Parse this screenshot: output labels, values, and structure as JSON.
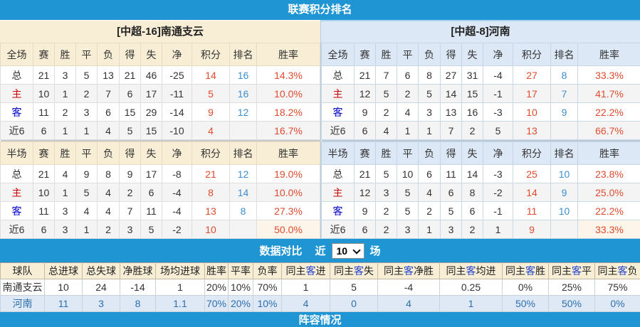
{
  "top_bar": {
    "title": "联赛积分排名"
  },
  "home_table": {
    "title": "[中超-16]南通支云",
    "sections": [
      {
        "label": "全场",
        "columns": [
          "赛",
          "胜",
          "平",
          "负",
          "得",
          "失",
          "净",
          "积分",
          "排名",
          "胜率"
        ],
        "rows": [
          {
            "label": "总",
            "values": [
              "21",
              "3",
              "5",
              "13",
              "21",
              "46",
              "-25",
              "14",
              "16",
              "14.3%"
            ]
          },
          {
            "label": "主",
            "values": [
              "10",
              "1",
              "2",
              "7",
              "6",
              "17",
              "-11",
              "5",
              "16",
              "10.0%"
            ]
          },
          {
            "label": "客",
            "values": [
              "11",
              "2",
              "3",
              "6",
              "15",
              "29",
              "-14",
              "9",
              "12",
              "18.2%"
            ]
          },
          {
            "label": "近6",
            "values": [
              "6",
              "1",
              "1",
              "4",
              "5",
              "15",
              "-10",
              "4",
              "",
              "16.7%"
            ]
          }
        ]
      },
      {
        "label": "半场",
        "columns": [
          "赛",
          "胜",
          "平",
          "负",
          "得",
          "失",
          "净",
          "积分",
          "排名",
          "胜率"
        ],
        "rows": [
          {
            "label": "总",
            "values": [
              "21",
              "4",
              "9",
              "8",
              "9",
              "17",
              "-8",
              "21",
              "12",
              "19.0%"
            ]
          },
          {
            "label": "主",
            "values": [
              "10",
              "1",
              "5",
              "4",
              "2",
              "6",
              "-4",
              "8",
              "14",
              "10.0%"
            ]
          },
          {
            "label": "客",
            "values": [
              "11",
              "3",
              "4",
              "4",
              "7",
              "11",
              "-4",
              "13",
              "8",
              "27.3%"
            ]
          },
          {
            "label": "近6",
            "values": [
              "6",
              "3",
              "1",
              "2",
              "3",
              "5",
              "-2",
              "10",
              "",
              "50.0%"
            ],
            "highlight_rate": true
          }
        ]
      }
    ]
  },
  "away_table": {
    "title": "[中超-8]河南",
    "sections": [
      {
        "label": "全场",
        "columns": [
          "赛",
          "胜",
          "平",
          "负",
          "得",
          "失",
          "净",
          "积分",
          "排名",
          "胜率"
        ],
        "rows": [
          {
            "label": "总",
            "values": [
              "21",
              "7",
              "6",
              "8",
              "27",
              "31",
              "-4",
              "27",
              "8",
              "33.3%"
            ]
          },
          {
            "label": "主",
            "values": [
              "12",
              "5",
              "2",
              "5",
              "14",
              "15",
              "-1",
              "17",
              "7",
              "41.7%"
            ]
          },
          {
            "label": "客",
            "values": [
              "9",
              "2",
              "4",
              "3",
              "13",
              "16",
              "-3",
              "10",
              "9",
              "22.2%"
            ]
          },
          {
            "label": "近6",
            "values": [
              "6",
              "4",
              "1",
              "1",
              "7",
              "2",
              "5",
              "13",
              "",
              "66.7%"
            ]
          }
        ]
      },
      {
        "label": "半场",
        "columns": [
          "赛",
          "胜",
          "平",
          "负",
          "得",
          "失",
          "净",
          "积分",
          "排名",
          "胜率"
        ],
        "rows": [
          {
            "label": "总",
            "values": [
              "21",
              "5",
              "10",
              "6",
              "11",
              "14",
              "-3",
              "25",
              "10",
              "23.8%"
            ]
          },
          {
            "label": "主",
            "values": [
              "12",
              "3",
              "5",
              "4",
              "6",
              "8",
              "-2",
              "14",
              "9",
              "25.0%"
            ]
          },
          {
            "label": "客",
            "values": [
              "9",
              "2",
              "5",
              "2",
              "5",
              "6",
              "-1",
              "11",
              "10",
              "22.2%"
            ]
          },
          {
            "label": "近6",
            "values": [
              "6",
              "2",
              "3",
              "1",
              "3",
              "2",
              "1",
              "9",
              "",
              "33.3%"
            ],
            "highlight_rate": true
          }
        ]
      }
    ]
  },
  "compare_bar": {
    "title": "数据对比",
    "near_label": "近",
    "select_value": "10",
    "matches_label": "场"
  },
  "compare_table": {
    "headers": [
      {
        "parts": [
          {
            "text": "球队"
          }
        ]
      },
      {
        "parts": [
          {
            "text": "总进球"
          }
        ]
      },
      {
        "parts": [
          {
            "text": "总失球"
          }
        ]
      },
      {
        "parts": [
          {
            "text": "净胜球"
          }
        ]
      },
      {
        "parts": [
          {
            "text": "场均进球"
          }
        ]
      },
      {
        "parts": [
          {
            "text": "胜率"
          }
        ]
      },
      {
        "parts": [
          {
            "text": "平率"
          }
        ]
      },
      {
        "parts": [
          {
            "text": "负率"
          }
        ]
      },
      {
        "parts": [
          {
            "text": "同主"
          },
          {
            "text": "客",
            "blue": true
          },
          {
            "text": "进"
          }
        ]
      },
      {
        "parts": [
          {
            "text": "同主"
          },
          {
            "text": "客",
            "blue": true
          },
          {
            "text": "失"
          }
        ]
      },
      {
        "parts": [
          {
            "text": "同主"
          },
          {
            "text": "客",
            "blue": true
          },
          {
            "text": "净胜"
          }
        ]
      },
      {
        "parts": [
          {
            "text": "同主"
          },
          {
            "text": "客",
            "blue": true
          },
          {
            "text": "均进"
          }
        ]
      },
      {
        "parts": [
          {
            "text": "同主"
          },
          {
            "text": "客",
            "blue": true
          },
          {
            "text": "胜"
          }
        ]
      },
      {
        "parts": [
          {
            "text": "同主"
          },
          {
            "text": "客",
            "blue": true
          },
          {
            "text": "平"
          }
        ]
      },
      {
        "parts": [
          {
            "text": "同主"
          },
          {
            "text": "客",
            "blue": true
          },
          {
            "text": "负"
          }
        ]
      }
    ],
    "rows": [
      {
        "team": "南通支云",
        "theme": "home",
        "values": [
          "10",
          "24",
          "-14",
          "1",
          "20%",
          "10%",
          "70%",
          "1",
          "5",
          "-4",
          "0.25",
          "0%",
          "25%",
          "75%"
        ]
      },
      {
        "team": "河南",
        "theme": "away",
        "values": [
          "11",
          "3",
          "8",
          "1.1",
          "70%",
          "20%",
          "10%",
          "4",
          "0",
          "4",
          "1",
          "50%",
          "50%",
          "0%"
        ]
      }
    ]
  },
  "bottom_bar": {
    "title": "阵容情况"
  },
  "colors": {
    "accent_blue": "#2095d3",
    "home_theme_cream": "#f8edd5",
    "away_theme_blue": "#dce8f5",
    "points_red": "#e14a2d",
    "rank_blue": "#3d8fd2",
    "home_label_red": "#cc0000",
    "away_label_blue": "#0000cc",
    "away_row_text_blue": "#2c6fad"
  }
}
